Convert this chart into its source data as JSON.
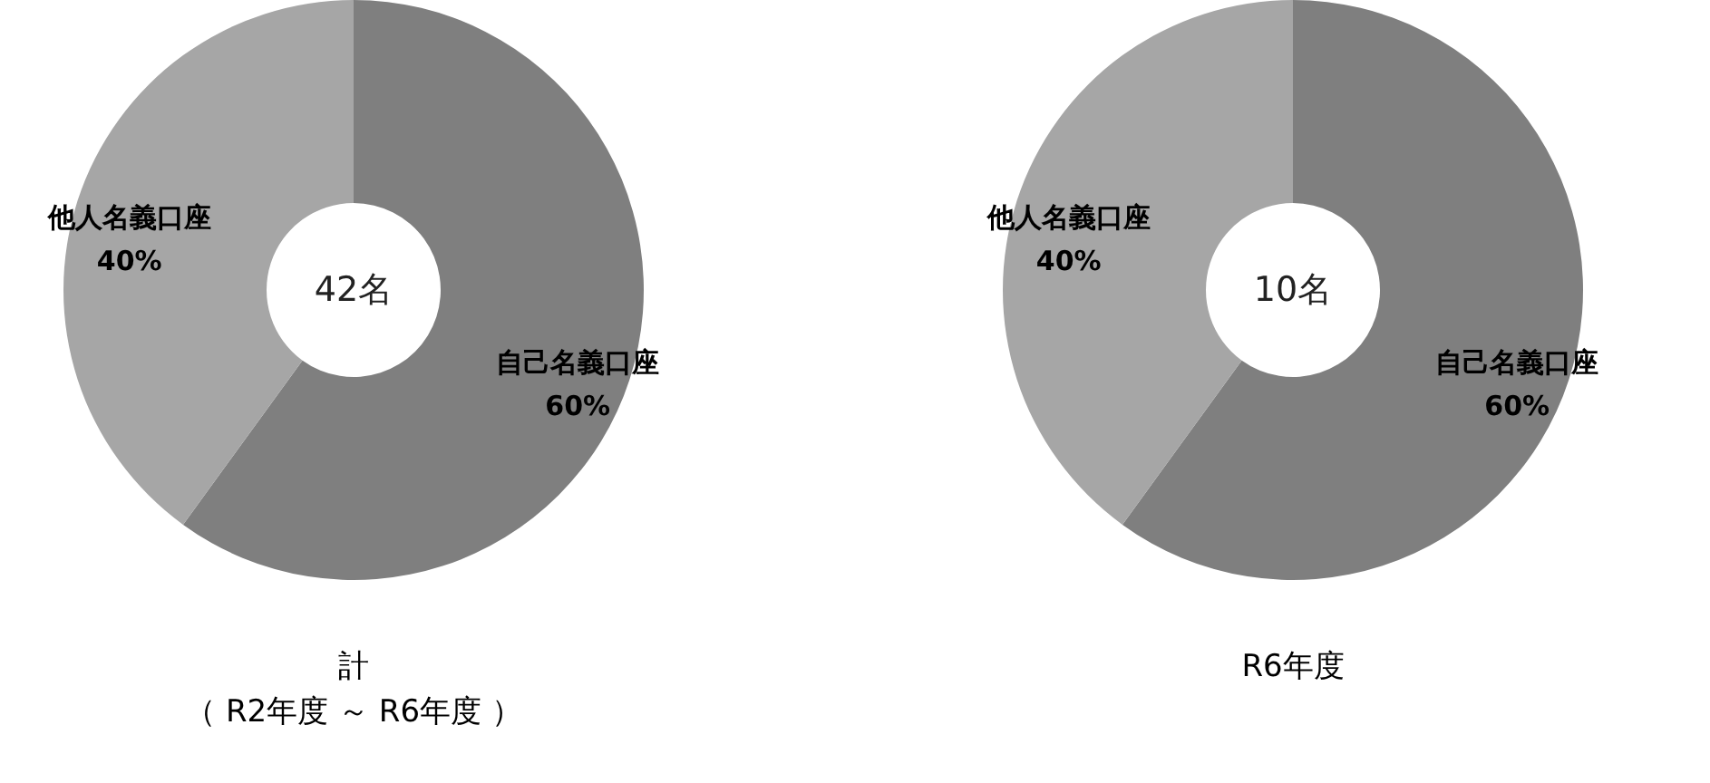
{
  "chart_data": [
    {
      "type": "donut",
      "title": "計",
      "subtitle": "（ R2年度 ～ R6年度 ）",
      "annotations": [
        "42名"
      ],
      "categories": [
        "自己名義口座",
        "他人名義口座"
      ],
      "values": [
        60,
        40
      ],
      "value_labels": [
        "60%",
        "40%"
      ],
      "colors": [
        "#7f7f7f",
        "#a6a6a6"
      ],
      "legend": false
    },
    {
      "type": "donut",
      "title": "R6年度",
      "annotations": [
        "10名"
      ],
      "categories": [
        "自己名義口座",
        "他人名義口座"
      ],
      "values": [
        60,
        40
      ],
      "value_labels": [
        "60%",
        "40%"
      ],
      "colors": [
        "#7f7f7f",
        "#a6a6a6"
      ],
      "legend": false
    }
  ]
}
